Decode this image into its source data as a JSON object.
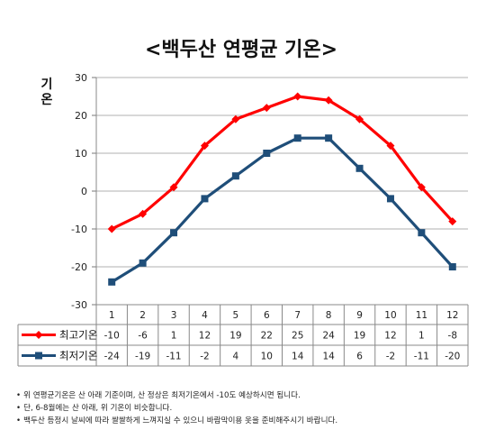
{
  "chart_data": {
    "type": "line",
    "title": "<백두산 연평균 기온>",
    "ylabel": "기온",
    "xlabel": "",
    "categories": [
      "1",
      "2",
      "3",
      "4",
      "5",
      "6",
      "7",
      "8",
      "9",
      "10",
      "11",
      "12"
    ],
    "ylim": [
      -30,
      30
    ],
    "yticks": [
      30,
      20,
      10,
      0,
      -10,
      -20,
      -30
    ],
    "grid": true,
    "legend_placement": "data-table-left",
    "series": [
      {
        "name": "최고기온",
        "color": "#ff0000",
        "marker": "diamond",
        "values": [
          -10,
          -6,
          1,
          12,
          19,
          22,
          25,
          24,
          19,
          12,
          1,
          -8
        ]
      },
      {
        "name": "최저기온",
        "color": "#1f4e79",
        "marker": "square",
        "values": [
          -24,
          -19,
          -11,
          -2,
          4,
          10,
          14,
          14,
          6,
          -2,
          -11,
          -20
        ]
      }
    ]
  },
  "notes": [
    "위 연평균기온은 산 아래 기준이며, 산 정상은 최저기온에서 -10도 예상하시면 됩니다.",
    "단, 6-8월에는 산 아래, 위 기온이 비슷합니다.",
    "백두산 등정시 날씨에 따라 쌀쌀하게 느껴지실 수 있으니 바람막이용 옷을 준비해주시기 바랍니다."
  ]
}
